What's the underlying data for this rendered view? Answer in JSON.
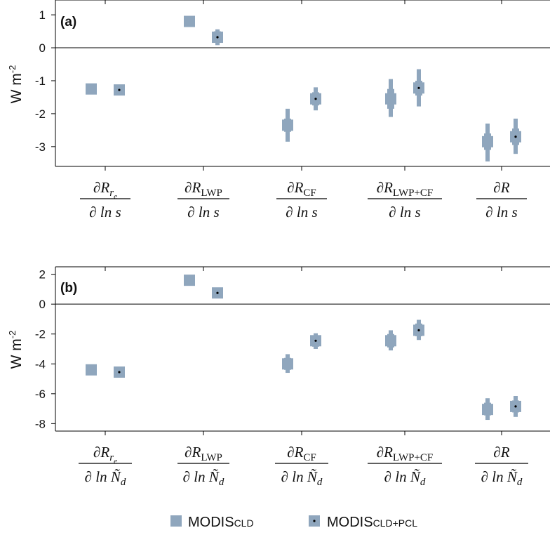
{
  "chart_data": [
    {
      "type": "scatter",
      "panel_label": "(a)",
      "ylabel": "W m",
      "ylabel_sup": "-2",
      "ylim": [
        -3.6,
        1.45
      ],
      "yticks": [
        1,
        0,
        -1,
        -2,
        -3
      ],
      "ytick_labels": [
        "1",
        "0",
        "-1",
        "-2",
        "-3"
      ],
      "grid": false,
      "categories": [
        {
          "num": "∂R",
          "num_sub": "r",
          "num_subsub": "e",
          "den": "∂ ln s"
        },
        {
          "num": "∂R",
          "num_sub": "LWP",
          "den": "∂ ln s"
        },
        {
          "num": "∂R",
          "num_sub": "CF",
          "den": "∂ ln s"
        },
        {
          "num": "∂R",
          "num_sub": "LWP+CF",
          "den": "∂ ln s"
        },
        {
          "num": "∂R",
          "num_sub": "",
          "den": "∂ ln s"
        }
      ],
      "series": [
        {
          "name": "MODIS_CLD",
          "values": [
            -1.25,
            0.8,
            -2.35,
            -1.55,
            -2.85
          ],
          "inner": [
            null,
            null,
            [
              -2.55,
              -2.15
            ],
            [
              -1.85,
              -1.25
            ],
            [
              -3.1,
              -2.6
            ]
          ],
          "outer": [
            null,
            null,
            [
              -2.85,
              -1.85
            ],
            [
              -2.1,
              -0.95
            ],
            [
              -3.45,
              -2.3
            ]
          ]
        },
        {
          "name": "MODIS_CLD+PCL",
          "values": [
            -1.28,
            0.32,
            -1.55,
            -1.22,
            -2.7
          ],
          "inner": [
            null,
            [
              0.15,
              0.5
            ],
            [
              -1.75,
              -1.35
            ],
            [
              -1.45,
              -1.0
            ],
            [
              -2.95,
              -2.45
            ]
          ],
          "outer": [
            null,
            [
              0.08,
              0.56
            ],
            [
              -1.9,
              -1.2
            ],
            [
              -1.78,
              -0.65
            ],
            [
              -3.22,
              -2.15
            ]
          ]
        }
      ]
    },
    {
      "type": "scatter",
      "panel_label": "(b)",
      "ylabel": "W m",
      "ylabel_sup": "-2",
      "ylim": [
        -8.5,
        2.5
      ],
      "yticks": [
        2,
        0,
        -2,
        -4,
        -6,
        -8
      ],
      "ytick_labels": [
        "2",
        "0",
        "-2",
        "-4",
        "-6",
        "-8"
      ],
      "grid": false,
      "categories": [
        {
          "num": "∂R",
          "num_sub": "r",
          "num_subsub": "e",
          "den": "∂ ln Ñ",
          "den_sub": "d"
        },
        {
          "num": "∂R",
          "num_sub": "LWP",
          "den": "∂ ln Ñ",
          "den_sub": "d"
        },
        {
          "num": "∂R",
          "num_sub": "CF",
          "den": "∂ ln Ñ",
          "den_sub": "d"
        },
        {
          "num": "∂R",
          "num_sub": "LWP+CF",
          "den": "∂ ln Ñ",
          "den_sub": "d"
        },
        {
          "num": "∂R",
          "num_sub": "",
          "den": "∂ ln Ñ",
          "den_sub": "d"
        }
      ],
      "series": [
        {
          "name": "MODIS_CLD",
          "values": [
            -4.4,
            1.6,
            -4.0,
            -2.45,
            -7.05
          ],
          "inner": [
            null,
            null,
            [
              -4.4,
              -3.6
            ],
            [
              -2.9,
              -2.0
            ],
            [
              -7.45,
              -6.6
            ]
          ],
          "outer": [
            null,
            null,
            [
              -4.6,
              -3.35
            ],
            [
              -3.1,
              -1.75
            ],
            [
              -7.75,
              -6.3
            ]
          ]
        },
        {
          "name": "MODIS_CLD+PCL",
          "values": [
            -4.55,
            0.75,
            -2.45,
            -1.75,
            -6.85
          ],
          "inner": [
            null,
            null,
            [
              -2.85,
              -2.1
            ],
            [
              -2.15,
              -1.3
            ],
            [
              -7.25,
              -6.45
            ]
          ],
          "outer": [
            null,
            null,
            [
              -3.0,
              -1.95
            ],
            [
              -2.4,
              -1.05
            ],
            [
              -7.55,
              -6.15
            ]
          ]
        }
      ]
    }
  ],
  "legend": {
    "placement": "bottom-center",
    "items": [
      {
        "main": "MODIS",
        "sub": "CLD",
        "marker": "square"
      },
      {
        "main": "MODIS",
        "sub": "CLD+PCL",
        "marker": "square-dot"
      }
    ]
  },
  "colors": {
    "marker": "#8fa6bd",
    "dot": "#000000",
    "axis": "#000000"
  }
}
